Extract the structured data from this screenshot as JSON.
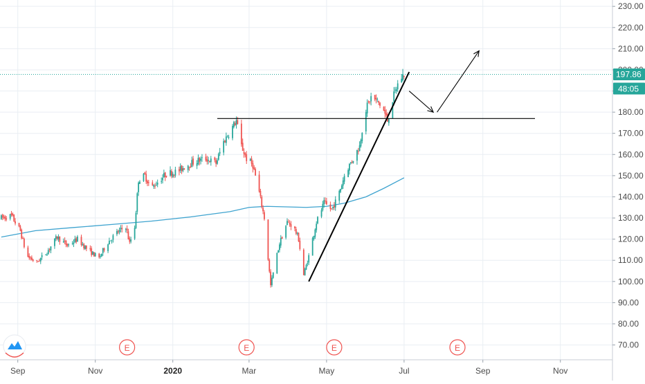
{
  "colors": {
    "up": "#26a69a",
    "down": "#ef5350",
    "ma": "#3ea3cf",
    "last_price_line": "#26a69a",
    "last_price_badge": "#26a69a",
    "countdown_badge": "#26a69a",
    "earnings": "#ef5350",
    "grid": "#e9eef3",
    "drawing": "#000000",
    "logo": "#2196f3"
  },
  "price_badge": {
    "price": "197.86",
    "countdown": "48:05"
  },
  "earnings_marker_label": "E",
  "chart_data": {
    "type": "candlestick",
    "title": "",
    "xlabel": "",
    "ylabel": "",
    "x_range": [
      "2019-08-18",
      "2020-12-12"
    ],
    "ylim": [
      63,
      233
    ],
    "y_ticks": [
      "70.00",
      "80.00",
      "90.00",
      "100.00",
      "110.00",
      "120.00",
      "130.00",
      "140.00",
      "150.00",
      "160.00",
      "170.00",
      "180.00",
      "190.00",
      "200.00",
      "210.00",
      "220.00",
      "230.00"
    ],
    "y_tick_values": [
      70,
      80,
      90,
      100,
      110,
      120,
      130,
      140,
      150,
      160,
      170,
      180,
      190,
      200,
      210,
      220,
      230
    ],
    "x_ticks": [
      {
        "label": "Sep",
        "date": "2019-09-01",
        "bold": false
      },
      {
        "label": "Nov",
        "date": "2019-11-01",
        "bold": false
      },
      {
        "label": "2020",
        "date": "2020-01-01",
        "bold": true
      },
      {
        "label": "Mar",
        "date": "2020-03-01",
        "bold": false
      },
      {
        "label": "May",
        "date": "2020-05-01",
        "bold": false
      },
      {
        "label": "Jul",
        "date": "2020-07-01",
        "bold": false
      },
      {
        "label": "Sep",
        "date": "2020-09-01",
        "bold": false
      },
      {
        "label": "Nov",
        "date": "2020-11-01",
        "bold": false
      }
    ],
    "price_path": [
      [
        "2019-08-19",
        130
      ],
      [
        "2019-08-27",
        131
      ],
      [
        "2019-09-03",
        124
      ],
      [
        "2019-09-08",
        112
      ],
      [
        "2019-09-16",
        109
      ],
      [
        "2019-09-24",
        114
      ],
      [
        "2019-10-02",
        121
      ],
      [
        "2019-10-10",
        117
      ],
      [
        "2019-10-18",
        120
      ],
      [
        "2019-10-26",
        115
      ],
      [
        "2019-11-04",
        111
      ],
      [
        "2019-11-10",
        118
      ],
      [
        "2019-11-18",
        123
      ],
      [
        "2019-11-25",
        126
      ],
      [
        "2019-11-28",
        118
      ],
      [
        "2019-12-02",
        126
      ],
      [
        "2019-12-05",
        148
      ],
      [
        "2019-12-10",
        150
      ],
      [
        "2019-12-15",
        144
      ],
      [
        "2019-12-20",
        147
      ],
      [
        "2019-12-27",
        151
      ],
      [
        "2020-01-05",
        152
      ],
      [
        "2020-01-12",
        155
      ],
      [
        "2020-01-20",
        157
      ],
      [
        "2020-01-27",
        158
      ],
      [
        "2020-02-04",
        156
      ],
      [
        "2020-02-10",
        166
      ],
      [
        "2020-02-16",
        172
      ],
      [
        "2020-02-20",
        176
      ],
      [
        "2020-02-24",
        164
      ],
      [
        "2020-02-28",
        158
      ],
      [
        "2020-03-04",
        155
      ],
      [
        "2020-03-09",
        142
      ],
      [
        "2020-03-13",
        130
      ],
      [
        "2020-03-18",
        98
      ],
      [
        "2020-03-22",
        110
      ],
      [
        "2020-03-25",
        118
      ],
      [
        "2020-03-31",
        128
      ],
      [
        "2020-04-05",
        126
      ],
      [
        "2020-04-09",
        120
      ],
      [
        "2020-04-13",
        103
      ],
      [
        "2020-04-17",
        112
      ],
      [
        "2020-04-23",
        128
      ],
      [
        "2020-04-29",
        137
      ],
      [
        "2020-05-05",
        134
      ],
      [
        "2020-05-10",
        140
      ],
      [
        "2020-05-16",
        152
      ],
      [
        "2020-05-22",
        158
      ],
      [
        "2020-05-27",
        164
      ],
      [
        "2020-05-31",
        180
      ],
      [
        "2020-06-05",
        187
      ],
      [
        "2020-06-10",
        185
      ],
      [
        "2020-06-14",
        182
      ],
      [
        "2020-06-18",
        176
      ],
      [
        "2020-06-22",
        186
      ],
      [
        "2020-06-27",
        195
      ],
      [
        "2020-07-01",
        198
      ]
    ],
    "series": [
      {
        "type": "moving-average",
        "color": "#3ea3cf",
        "points": [
          [
            "2019-08-19",
            121
          ],
          [
            "2019-09-15",
            124
          ],
          [
            "2019-10-15",
            125.5
          ],
          [
            "2019-11-15",
            127
          ],
          [
            "2019-12-15",
            128.5
          ],
          [
            "2020-01-15",
            130.5
          ],
          [
            "2020-02-15",
            133
          ],
          [
            "2020-03-01",
            135
          ],
          [
            "2020-03-15",
            135.5
          ],
          [
            "2020-04-15",
            135
          ],
          [
            "2020-05-01",
            135.5
          ],
          [
            "2020-05-15",
            137
          ],
          [
            "2020-06-01",
            140
          ],
          [
            "2020-06-15",
            144
          ],
          [
            "2020-07-01",
            149
          ]
        ]
      }
    ],
    "drawings": [
      {
        "type": "horizontal-line",
        "from": "2020-02-05",
        "to": "2020-10-12",
        "y": 177
      },
      {
        "type": "trend-line",
        "from": [
          "2020-04-17",
          100
        ],
        "to": [
          "2020-07-05",
          199
        ]
      },
      {
        "type": "arrow",
        "from": [
          "2020-07-05",
          190
        ],
        "to": [
          "2020-07-24",
          180
        ]
      },
      {
        "type": "arrow",
        "from": [
          "2020-07-27",
          180
        ],
        "to": [
          "2020-08-29",
          209
        ]
      }
    ],
    "earnings_dates": [
      "2019-11-26",
      "2020-02-28",
      "2020-05-07",
      "2020-08-12"
    ],
    "last_price": 197.86,
    "grid": true
  }
}
